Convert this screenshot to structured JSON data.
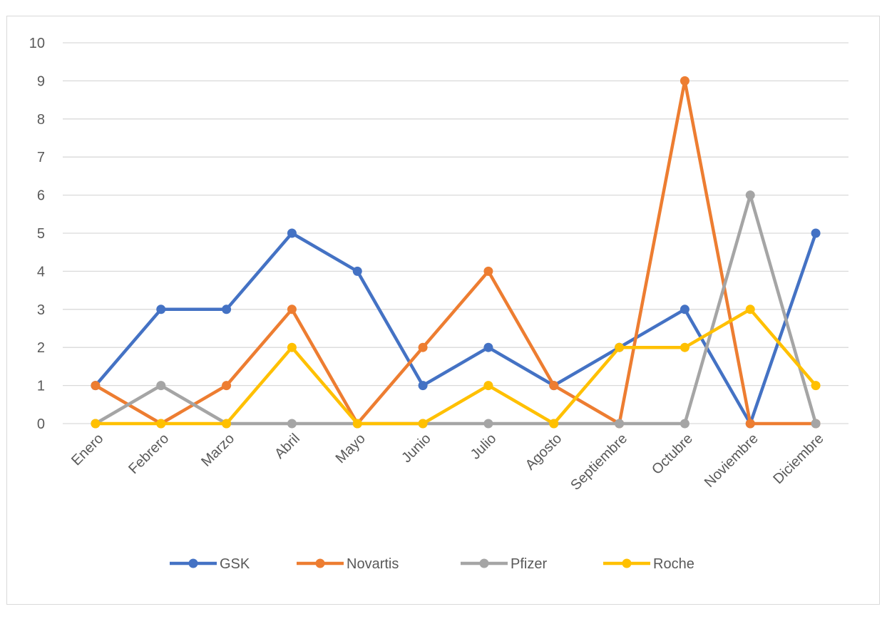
{
  "chart_data": {
    "type": "line",
    "title": "",
    "xlabel": "",
    "ylabel": "",
    "categories": [
      "Enero",
      "Febrero",
      "Marzo",
      "Abril",
      "Mayo",
      "Junio",
      "Julio",
      "Agosto",
      "Septiembre",
      "Octubre",
      "Noviembre",
      "Diciembre"
    ],
    "ylim": [
      0,
      10
    ],
    "yticks": [
      0,
      1,
      2,
      3,
      4,
      5,
      6,
      7,
      8,
      9,
      10
    ],
    "grid": true,
    "legend_position": "bottom",
    "series": [
      {
        "name": "GSK",
        "color": "#4472c4",
        "values": [
          1,
          3,
          3,
          5,
          4,
          1,
          2,
          1,
          2,
          3,
          0,
          5
        ]
      },
      {
        "name": "Novartis",
        "color": "#ed7d31",
        "values": [
          1,
          0,
          1,
          3,
          0,
          2,
          4,
          1,
          0,
          9,
          0,
          0
        ]
      },
      {
        "name": "Pfizer",
        "color": "#a5a5a5",
        "values": [
          0,
          1,
          0,
          0,
          0,
          0,
          0,
          0,
          0,
          0,
          6,
          0
        ]
      },
      {
        "name": "Roche",
        "color": "#ffc000",
        "values": [
          0,
          0,
          0,
          2,
          0,
          0,
          1,
          0,
          2,
          2,
          3,
          1
        ]
      }
    ]
  }
}
